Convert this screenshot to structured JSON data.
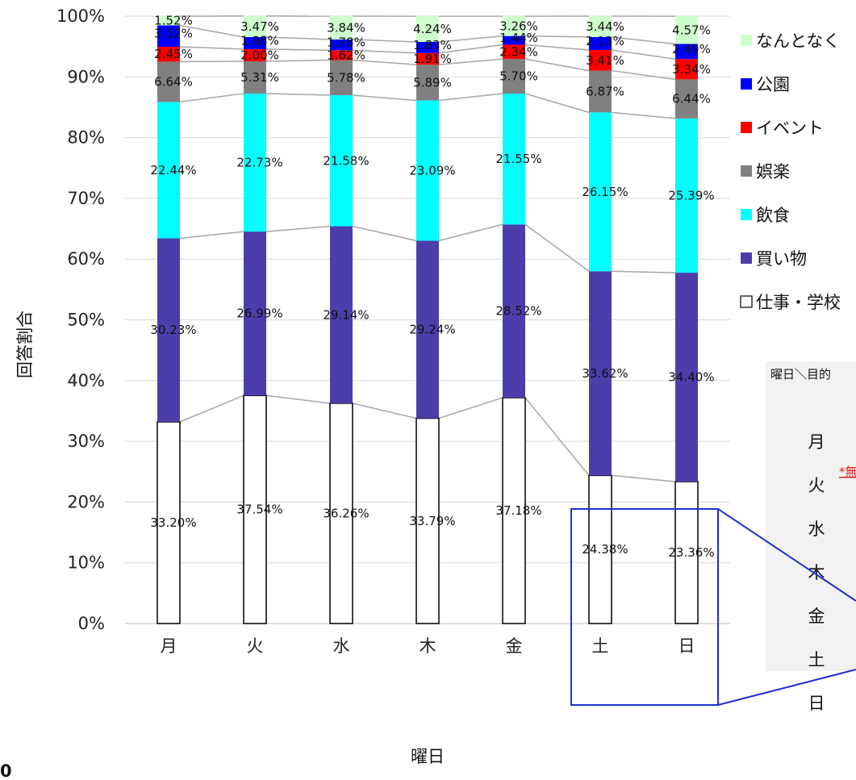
{
  "chart_data": {
    "type": "bar",
    "stacked": true,
    "ylabel": "回答割合",
    "xlabel": "曜日",
    "ylim": [
      0,
      100
    ],
    "yticks": [
      "0%",
      "10%",
      "20%",
      "30%",
      "40%",
      "50%",
      "60%",
      "70%",
      "80%",
      "90%",
      "100%"
    ],
    "grid": true,
    "legend_position": "right",
    "categories": [
      "月",
      "火",
      "水",
      "木",
      "金",
      "土",
      "日"
    ],
    "series": [
      {
        "name": "仕事・学校",
        "color": "#ffffff",
        "values": [
          33.2,
          37.54,
          36.26,
          33.79,
          37.18,
          24.38,
          23.36
        ],
        "labels": [
          "33.20%",
          "37.54%",
          "36.26%",
          "33.79%",
          "37.18%",
          "24.38%",
          "23.36%"
        ]
      },
      {
        "name": "買い物",
        "color": "#4b3eaa",
        "values": [
          30.23,
          26.99,
          29.14,
          29.24,
          28.52,
          33.62,
          34.4
        ],
        "labels": [
          "30.23%",
          "26.99%",
          "29.14%",
          "29.24%",
          "28.52%",
          "33.62%",
          "34.40%"
        ]
      },
      {
        "name": "飲食",
        "color": "#00ffff",
        "values": [
          22.44,
          22.73,
          21.58,
          23.09,
          21.55,
          26.15,
          25.39
        ],
        "labels": [
          "22.44%",
          "22.73%",
          "21.58%",
          "23.09%",
          "21.55%",
          "26.15%",
          "25.39%"
        ]
      },
      {
        "name": "娯楽",
        "color": "#808080",
        "values": [
          6.64,
          5.31,
          5.78,
          5.89,
          5.7,
          6.87,
          6.44
        ],
        "labels": [
          "6.64%",
          "5.31%",
          "5.78%",
          "5.89%",
          "5.70%",
          "6.87%",
          "6.44%"
        ]
      },
      {
        "name": "イベント",
        "color": "#ff0000",
        "values": [
          2.45,
          2.0,
          1.62,
          1.91,
          2.34,
          3.41,
          3.34
        ],
        "labels": [
          "2.45%",
          "2.00%",
          "1.62%",
          "1.91%",
          "2.34%",
          "3.41%",
          "3.34%"
        ]
      },
      {
        "name": "公園",
        "color": "#0000ff",
        "values": [
          3.52,
          1.98,
          1.78,
          1.83,
          1.44,
          2.13,
          2.49
        ],
        "labels": [
          "3.52%",
          "1.98%",
          "1.78%",
          "1.83%",
          "1.44%",
          "2.13%",
          "2.49%"
        ]
      },
      {
        "name": "なんとなく",
        "color": "#ccffcc",
        "values": [
          1.52,
          3.47,
          3.84,
          4.24,
          3.26,
          3.44,
          4.57
        ],
        "labels": [
          "1.52%",
          "3.47%",
          "3.84%",
          "4.24%",
          "3.26%",
          "3.44%",
          "4.57%"
        ]
      }
    ],
    "legend_order": [
      "なんとなく",
      "公園",
      "イベント",
      "娯楽",
      "飲食",
      "買い物",
      "仕事・学校"
    ]
  },
  "side_table": {
    "header": "曜日＼目的",
    "rows": [
      "月",
      "火",
      "水",
      "木",
      "金",
      "土",
      "日"
    ]
  },
  "footnote": "*無",
  "corner_text": "0",
  "highlight_color": "#1f2fd6"
}
